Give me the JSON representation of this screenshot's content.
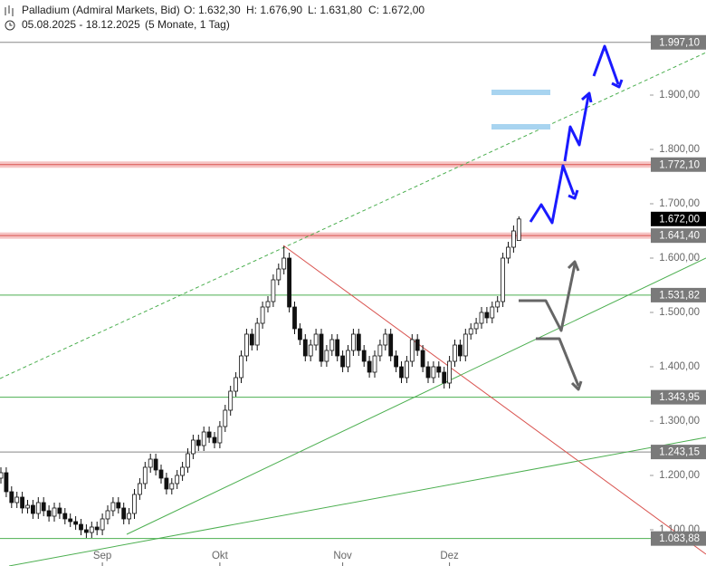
{
  "header": {
    "symbol": "Palladium (Admiral Markets, Bid)",
    "ohlc": [
      "O: 1.632,30",
      "H: 1.676,90",
      "L: 1.631,80",
      "C: 1.672,00"
    ],
    "range": "05.08.2025 - 18.12.2025",
    "period": "(5 Monate, 1 Tag)"
  },
  "chart_data": {
    "type": "candlestick",
    "categories": [
      null,
      null,
      null,
      null,
      null,
      null,
      null,
      null,
      null,
      null,
      null,
      null,
      null,
      null,
      null,
      null,
      null,
      null,
      null,
      "Sep",
      null,
      null,
      null,
      null,
      null,
      null,
      null,
      null,
      null,
      null,
      null,
      null,
      null,
      null,
      null,
      null,
      null,
      null,
      null,
      null,
      null,
      "Okt",
      null,
      null,
      null,
      null,
      null,
      null,
      null,
      null,
      null,
      null,
      null,
      null,
      null,
      null,
      null,
      null,
      null,
      null,
      null,
      null,
      null,
      null,
      "Nov",
      null,
      null,
      null,
      null,
      null,
      null,
      null,
      null,
      null,
      null,
      null,
      null,
      null,
      null,
      null,
      null,
      null,
      null,
      null,
      "Dez",
      null,
      null,
      null,
      null,
      null,
      null,
      null,
      null,
      null,
      null,
      null,
      null,
      null
    ],
    "open": [
      1195,
      1205,
      1170,
      1150,
      1160,
      1140,
      1145,
      1130,
      1150,
      1135,
      1125,
      1140,
      1130,
      1120,
      1115,
      1110,
      1100,
      1095,
      1105,
      1100,
      1120,
      1135,
      1150,
      1140,
      1120,
      1130,
      1165,
      1185,
      1215,
      1230,
      1210,
      1195,
      1175,
      1185,
      1200,
      1215,
      1240,
      1265,
      1255,
      1280,
      1270,
      1260,
      1290,
      1320,
      1355,
      1380,
      1420,
      1460,
      1440,
      1480,
      1510,
      1520,
      1560,
      1580,
      1600,
      1510,
      1470,
      1450,
      1420,
      1440,
      1460,
      1410,
      1430,
      1450,
      1420,
      1400,
      1430,
      1460,
      1430,
      1410,
      1390,
      1420,
      1440,
      1460,
      1420,
      1400,
      1380,
      1410,
      1450,
      1430,
      1400,
      1380,
      1400,
      1390,
      1370,
      1410,
      1440,
      1420,
      1460,
      1470,
      1480,
      1500,
      1490,
      1510,
      1520,
      1600,
      1620,
      1632.3
    ],
    "high": [
      1215,
      1215,
      1180,
      1170,
      1170,
      1155,
      1155,
      1160,
      1160,
      1145,
      1150,
      1150,
      1140,
      1130,
      1125,
      1120,
      1110,
      1115,
      1115,
      1130,
      1145,
      1160,
      1160,
      1150,
      1140,
      1175,
      1195,
      1225,
      1240,
      1240,
      1220,
      1205,
      1195,
      1210,
      1225,
      1250,
      1275,
      1275,
      1290,
      1290,
      1280,
      1300,
      1330,
      1365,
      1390,
      1430,
      1470,
      1470,
      1490,
      1520,
      1530,
      1570,
      1590,
      1622,
      1610,
      1520,
      1480,
      1460,
      1450,
      1470,
      1470,
      1440,
      1460,
      1460,
      1430,
      1440,
      1470,
      1470,
      1440,
      1420,
      1430,
      1450,
      1470,
      1470,
      1430,
      1410,
      1420,
      1460,
      1460,
      1440,
      1410,
      1410,
      1410,
      1400,
      1420,
      1450,
      1450,
      1470,
      1480,
      1490,
      1510,
      1510,
      1520,
      1530,
      1610,
      1630,
      1660,
      1676.9
    ],
    "low": [
      1185,
      1160,
      1140,
      1140,
      1130,
      1130,
      1120,
      1120,
      1125,
      1115,
      1115,
      1120,
      1110,
      1105,
      1100,
      1090,
      1085,
      1085,
      1090,
      1090,
      1110,
      1125,
      1130,
      1110,
      1110,
      1120,
      1155,
      1175,
      1205,
      1200,
      1185,
      1165,
      1165,
      1175,
      1190,
      1205,
      1230,
      1245,
      1245,
      1260,
      1250,
      1250,
      1280,
      1310,
      1345,
      1370,
      1410,
      1430,
      1430,
      1470,
      1500,
      1510,
      1550,
      1570,
      1500,
      1460,
      1440,
      1410,
      1410,
      1430,
      1400,
      1400,
      1420,
      1410,
      1390,
      1390,
      1420,
      1420,
      1400,
      1380,
      1380,
      1410,
      1430,
      1410,
      1390,
      1370,
      1370,
      1400,
      1420,
      1390,
      1370,
      1370,
      1380,
      1360,
      1360,
      1400,
      1410,
      1410,
      1450,
      1460,
      1470,
      1480,
      1480,
      1500,
      1510,
      1590,
      1610,
      1631.8
    ],
    "close": [
      1205,
      1170,
      1150,
      1160,
      1140,
      1145,
      1130,
      1150,
      1135,
      1125,
      1140,
      1130,
      1120,
      1115,
      1110,
      1100,
      1095,
      1105,
      1100,
      1120,
      1135,
      1150,
      1140,
      1120,
      1130,
      1165,
      1185,
      1215,
      1230,
      1210,
      1195,
      1175,
      1185,
      1200,
      1215,
      1240,
      1265,
      1255,
      1280,
      1270,
      1260,
      1290,
      1320,
      1355,
      1380,
      1420,
      1460,
      1440,
      1480,
      1510,
      1520,
      1560,
      1580,
      1600,
      1510,
      1470,
      1450,
      1420,
      1440,
      1460,
      1410,
      1430,
      1450,
      1420,
      1400,
      1430,
      1460,
      1430,
      1410,
      1390,
      1420,
      1440,
      1460,
      1420,
      1400,
      1380,
      1410,
      1450,
      1430,
      1400,
      1380,
      1400,
      1390,
      1370,
      1410,
      1440,
      1420,
      1460,
      1470,
      1480,
      1500,
      1490,
      1510,
      1520,
      1600,
      1620,
      1650,
      1672
    ],
    "up_color": "#ffffff",
    "down_color": "#111111",
    "ylim": [
      1033.3,
      2041.7
    ],
    "yticks": [
      {
        "value": 1100,
        "label": "1.100,00"
      },
      {
        "value": 1200,
        "label": "1.200,00"
      },
      {
        "value": 1300,
        "label": "1.300,00"
      },
      {
        "value": 1400,
        "label": "1.400,00"
      },
      {
        "value": 1500,
        "label": "1.500,00"
      },
      {
        "value": 1600,
        "label": "1.600,00"
      },
      {
        "value": 1700,
        "label": "1.700,00"
      },
      {
        "value": 1800,
        "label": "1.800,00"
      },
      {
        "value": 1900,
        "label": "1.900,00"
      }
    ],
    "levels": [
      {
        "value": 1997.1,
        "label": "1.997,10",
        "color": "#888888"
      },
      {
        "value": 1772.1,
        "label": "1.772,10",
        "color": "#d9534f",
        "band_color": "#f6c4c4"
      },
      {
        "value": 1672,
        "label": "1.672,00",
        "color": "#000000"
      },
      {
        "value": 1641.4,
        "label": "1.641,40",
        "color": "#d9534f",
        "band_color": "#f6c4c4"
      },
      {
        "value": 1531.82,
        "label": "1.531,82",
        "color": "#4caf50"
      },
      {
        "value": 1343.95,
        "label": "1.343,95",
        "color": "#4caf50"
      },
      {
        "value": 1243.15,
        "label": "1.243,15",
        "color": "#888888"
      },
      {
        "value": 1083.88,
        "label": "1.083,88",
        "color": "#4caf50"
      }
    ]
  }
}
